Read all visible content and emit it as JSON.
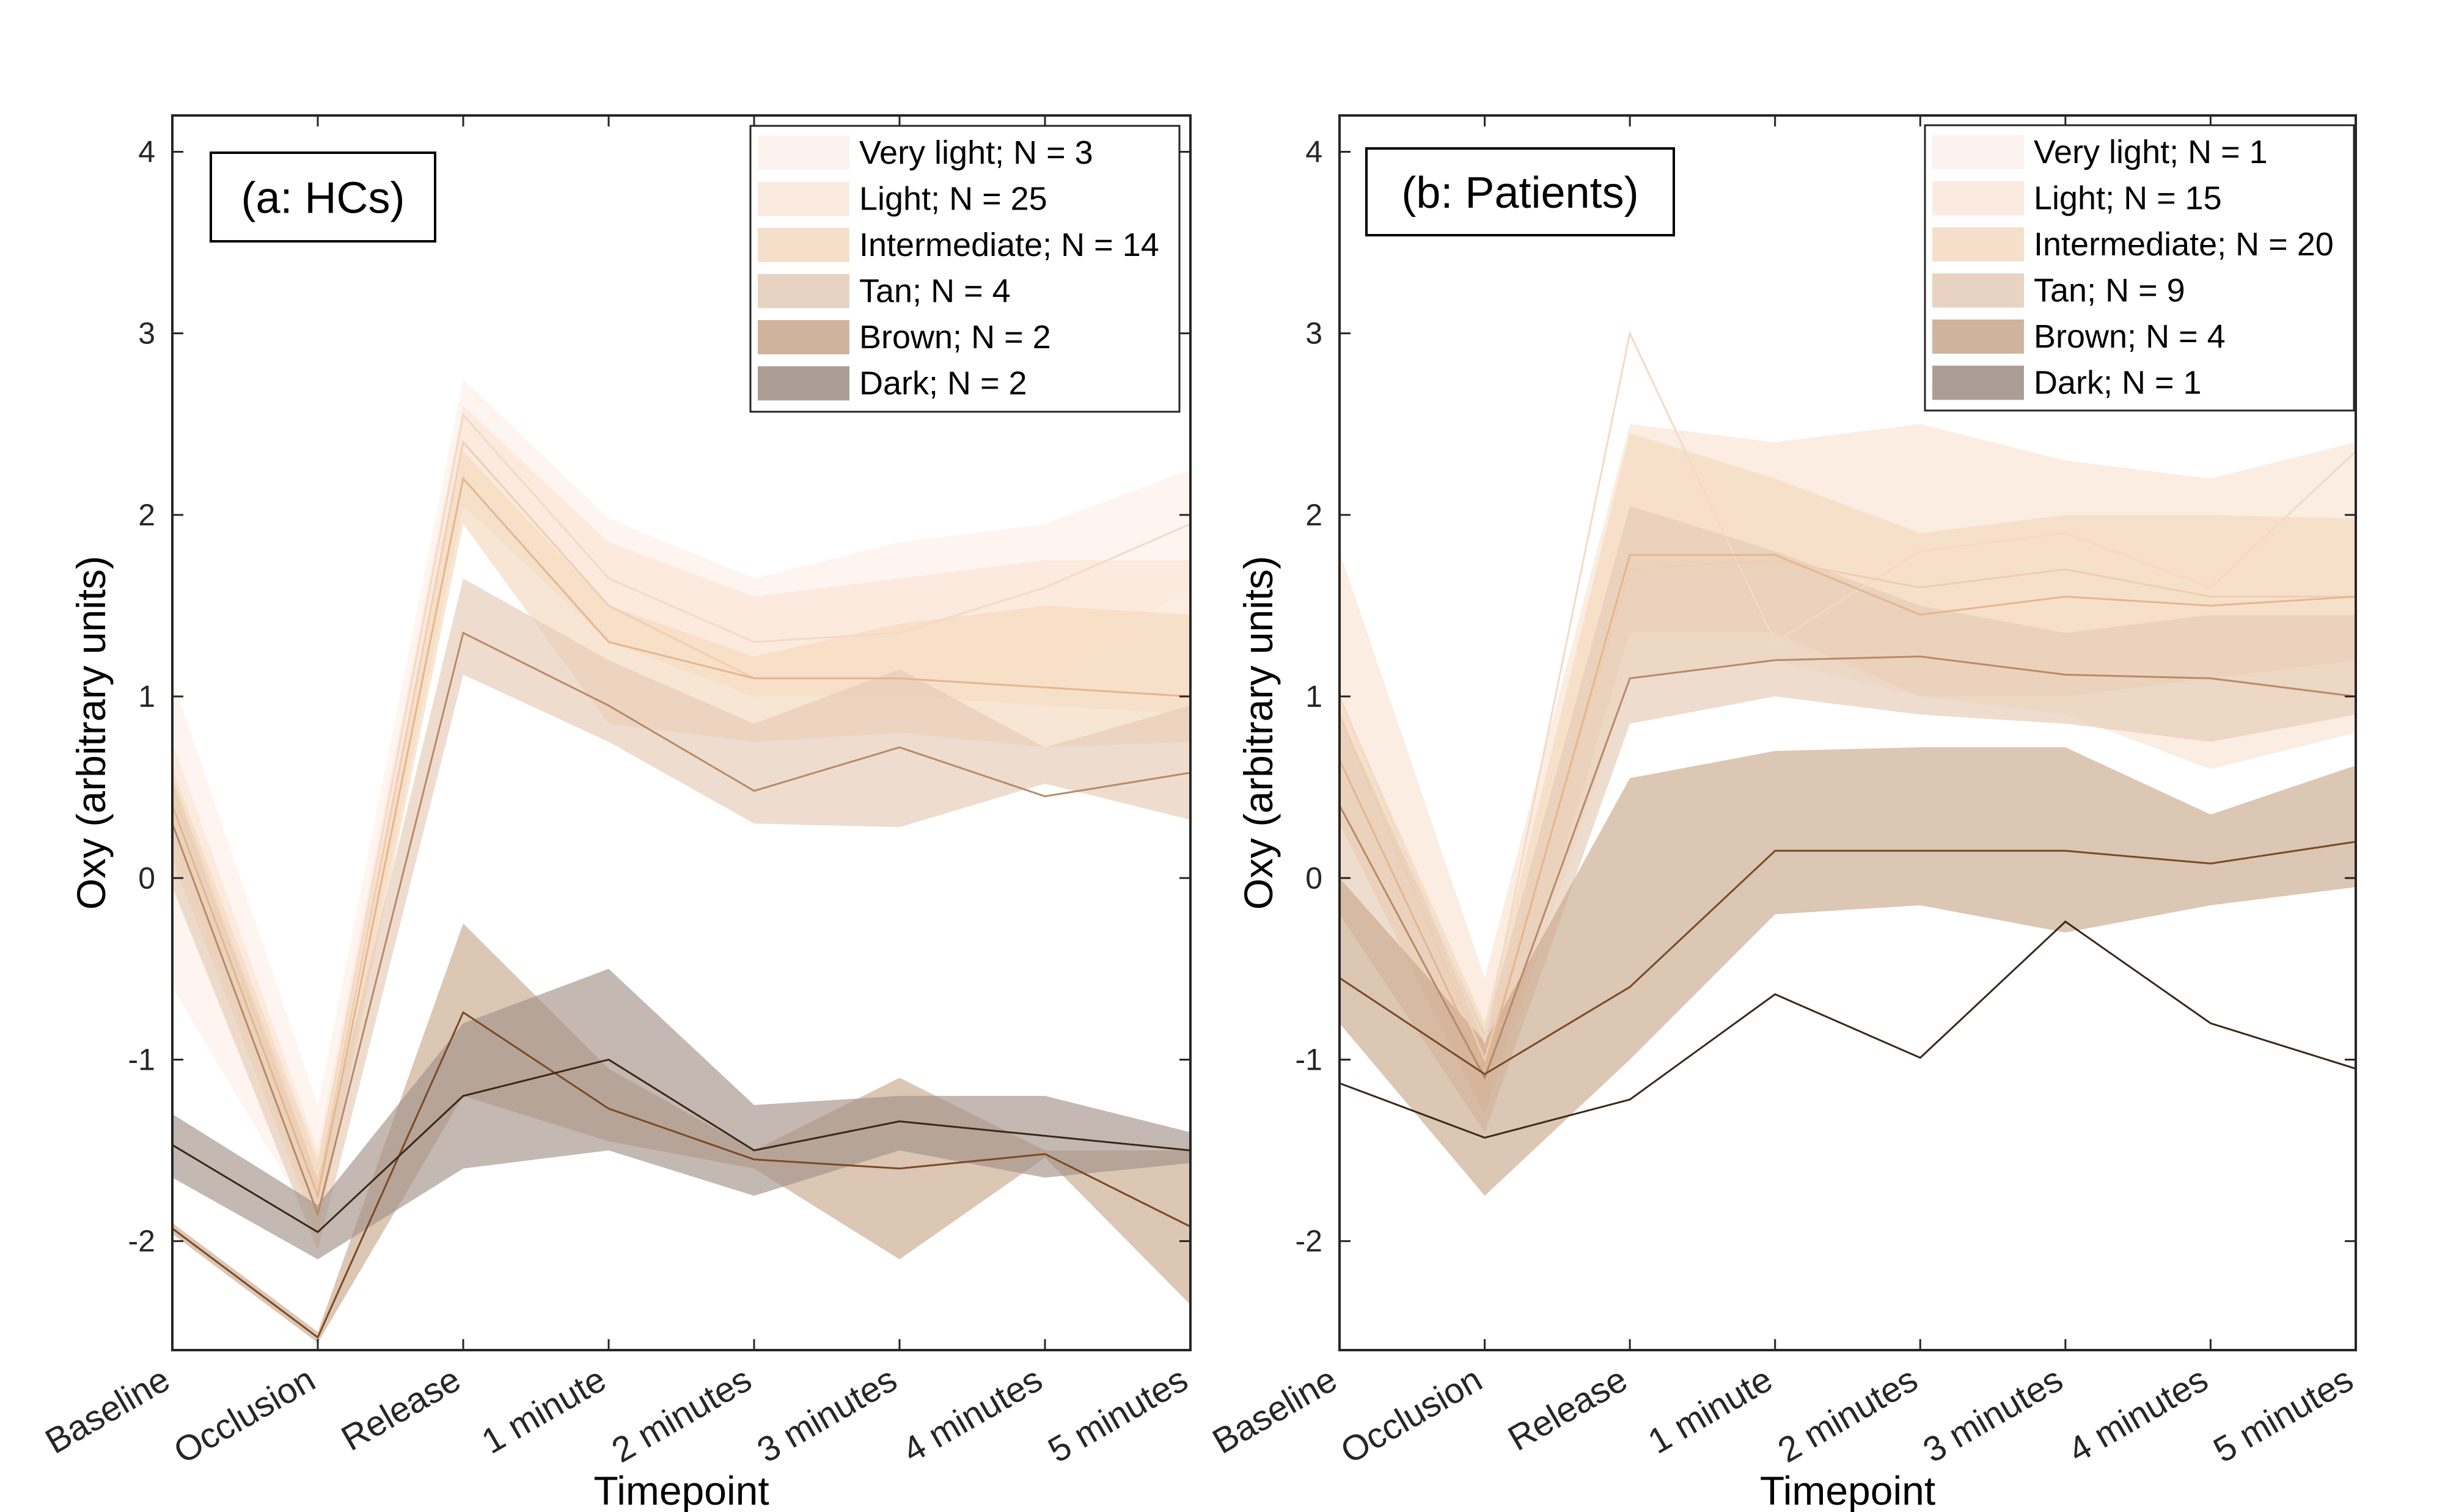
{
  "chart_data": [
    {
      "type": "line",
      "panel_label": "(a: HCs)",
      "xlabel": "Timepoint",
      "ylabel": "Oxy (arbitrary units)",
      "categories": [
        "Baseline",
        "Occlusion",
        "Release",
        "1 minute",
        "2 minutes",
        "3 minutes",
        "4 minutes",
        "5 minutes"
      ],
      "yticks": [
        -2,
        -1,
        0,
        1,
        2,
        3,
        4
      ],
      "ylim": [
        -2.6,
        4.2
      ],
      "grid": false,
      "legend_position": "top-right",
      "series": [
        {
          "name": "Very light; N = 3",
          "color": "#fdf0e8",
          "line": "#f3d9c8",
          "values": [
            0.5,
            -1.6,
            2.55,
            1.65,
            1.3,
            1.35,
            1.6,
            1.95
          ],
          "upper": [
            1.1,
            -1.25,
            2.75,
            1.98,
            1.65,
            1.85,
            1.95,
            2.25
          ],
          "lower": [
            -0.6,
            -1.95,
            2.25,
            1.35,
            1.0,
            1.05,
            1.1,
            1.6
          ]
        },
        {
          "name": "Light; N = 25",
          "color": "#f9e4d3",
          "line": "#efcdb2",
          "values": [
            0.5,
            -1.7,
            2.4,
            1.5,
            1.1,
            1.1,
            1.05,
            1.0
          ],
          "upper": [
            0.75,
            -1.5,
            2.6,
            1.85,
            1.55,
            1.65,
            1.75,
            1.75
          ],
          "lower": [
            0.2,
            -1.9,
            2.05,
            1.3,
            1.0,
            1.0,
            0.95,
            0.9
          ]
        },
        {
          "name": "Intermediate; N = 14",
          "color": "#f4d8bd",
          "line": "#e4b68f",
          "values": [
            0.4,
            -1.75,
            2.2,
            1.3,
            1.1,
            1.1,
            1.05,
            1.0
          ],
          "upper": [
            0.6,
            -1.55,
            2.35,
            1.5,
            1.22,
            1.4,
            1.5,
            1.45
          ],
          "lower": [
            0.1,
            -1.95,
            1.95,
            0.85,
            0.75,
            0.8,
            0.72,
            0.75
          ]
        },
        {
          "name": "Tan; N = 4",
          "color": "#e5cbb6",
          "line": "#b98a68",
          "values": [
            0.3,
            -1.85,
            1.35,
            0.95,
            0.48,
            0.72,
            0.45,
            0.58
          ],
          "upper": [
            0.55,
            -1.65,
            1.65,
            1.2,
            0.85,
            1.15,
            0.72,
            0.95
          ],
          "lower": [
            -0.05,
            -2.05,
            1.12,
            0.75,
            0.3,
            0.28,
            0.52,
            0.32
          ]
        },
        {
          "name": "Brown; N = 2",
          "color": "#c9a88c",
          "line": "#7a4a25",
          "values": [
            -1.93,
            -2.53,
            -0.74,
            -1.27,
            -1.55,
            -1.6,
            -1.52,
            -1.92
          ],
          "upper": [
            -1.9,
            -2.5,
            -0.25,
            -1.05,
            -1.5,
            -1.1,
            -1.5,
            -1.5
          ],
          "lower": [
            -1.96,
            -2.56,
            -1.2,
            -1.45,
            -1.6,
            -2.1,
            -1.54,
            -2.35
          ]
        },
        {
          "name": "Dark; N = 2",
          "color": "#a39289",
          "line": "#3b2818",
          "values": [
            -1.47,
            -1.95,
            -1.2,
            -1.0,
            -1.5,
            -1.34,
            -1.42,
            -1.5
          ],
          "upper": [
            -1.3,
            -1.8,
            -0.8,
            -0.5,
            -1.25,
            -1.2,
            -1.2,
            -1.4
          ],
          "lower": [
            -1.65,
            -2.1,
            -1.6,
            -1.5,
            -1.75,
            -1.5,
            -1.65,
            -1.57
          ]
        }
      ]
    },
    {
      "type": "line",
      "panel_label": "(b: Patients)",
      "xlabel": "Timepoint",
      "ylabel": "Oxy (arbitrary units)",
      "categories": [
        "Baseline",
        "Occlusion",
        "Release",
        "1 minute",
        "2 minutes",
        "3 minutes",
        "4 minutes",
        "5 minutes"
      ],
      "yticks": [
        -2,
        -1,
        0,
        1,
        2,
        3,
        4
      ],
      "ylim": [
        -2.6,
        4.2
      ],
      "grid": false,
      "legend_position": "top-right",
      "series": [
        {
          "name": "Very light; N = 1",
          "color": "#fdf0e8",
          "line": "#f3d9c8",
          "values": [
            1.0,
            -0.9,
            3.0,
            1.3,
            1.8,
            1.9,
            1.6,
            2.35
          ],
          "upper": [
            1.0,
            -0.9,
            3.0,
            1.3,
            1.8,
            1.9,
            1.6,
            2.35
          ],
          "lower": [
            1.0,
            -0.9,
            3.0,
            1.3,
            1.8,
            1.9,
            1.6,
            2.35
          ]
        },
        {
          "name": "Light; N = 15",
          "color": "#f9e4d3",
          "line": "#efcdb2",
          "values": [
            0.9,
            -1.0,
            1.7,
            1.75,
            1.6,
            1.7,
            1.55,
            1.55
          ],
          "upper": [
            1.8,
            -0.55,
            2.5,
            2.4,
            2.5,
            2.3,
            2.2,
            2.4
          ],
          "lower": [
            0.3,
            -1.3,
            1.1,
            1.2,
            1.0,
            0.9,
            0.6,
            0.8
          ]
        },
        {
          "name": "Intermediate; N = 20",
          "color": "#f4d8bd",
          "line": "#e4b68f",
          "values": [
            0.65,
            -1.05,
            1.78,
            1.78,
            1.45,
            1.55,
            1.5,
            1.55
          ],
          "upper": [
            1.0,
            -0.8,
            2.45,
            2.2,
            1.9,
            2.0,
            2.0,
            1.98
          ],
          "lower": [
            0.3,
            -1.3,
            1.35,
            1.35,
            1.0,
            1.0,
            1.1,
            1.2
          ]
        },
        {
          "name": "Tan; N = 9",
          "color": "#e5cbb6",
          "line": "#b98a68",
          "values": [
            0.4,
            -1.1,
            1.1,
            1.2,
            1.22,
            1.12,
            1.1,
            1.0
          ],
          "upper": [
            0.9,
            -0.85,
            2.05,
            1.8,
            1.5,
            1.35,
            1.45,
            1.45
          ],
          "lower": [
            -0.2,
            -1.4,
            0.85,
            1.0,
            0.9,
            0.85,
            0.75,
            0.9
          ]
        },
        {
          "name": "Brown; N = 4",
          "color": "#c9a88c",
          "line": "#7a4a25",
          "values": [
            -0.55,
            -1.08,
            -0.6,
            0.15,
            0.15,
            0.15,
            0.08,
            0.2
          ],
          "upper": [
            0.0,
            -0.9,
            0.55,
            0.7,
            0.72,
            0.72,
            0.35,
            0.62
          ],
          "lower": [
            -0.8,
            -1.75,
            -1.0,
            -0.2,
            -0.15,
            -0.3,
            -0.15,
            -0.05
          ]
        },
        {
          "name": "Dark; N = 1",
          "color": "#a39289",
          "line": "#3b2818",
          "values": [
            -1.13,
            -1.43,
            -1.22,
            -0.64,
            -0.99,
            -0.24,
            -0.8,
            -1.05
          ],
          "upper": [
            -1.13,
            -1.43,
            -1.22,
            -0.64,
            -0.99,
            -0.24,
            -0.8,
            -1.05
          ],
          "lower": [
            -1.13,
            -1.43,
            -1.22,
            -0.64,
            -0.99,
            -0.24,
            -0.8,
            -1.05
          ]
        }
      ]
    }
  ],
  "legend_swatches": [
    "#fdf3ee",
    "#fbeadf",
    "#f6dfca",
    "#e8d3c2",
    "#d1b39d",
    "#ac9e94"
  ]
}
